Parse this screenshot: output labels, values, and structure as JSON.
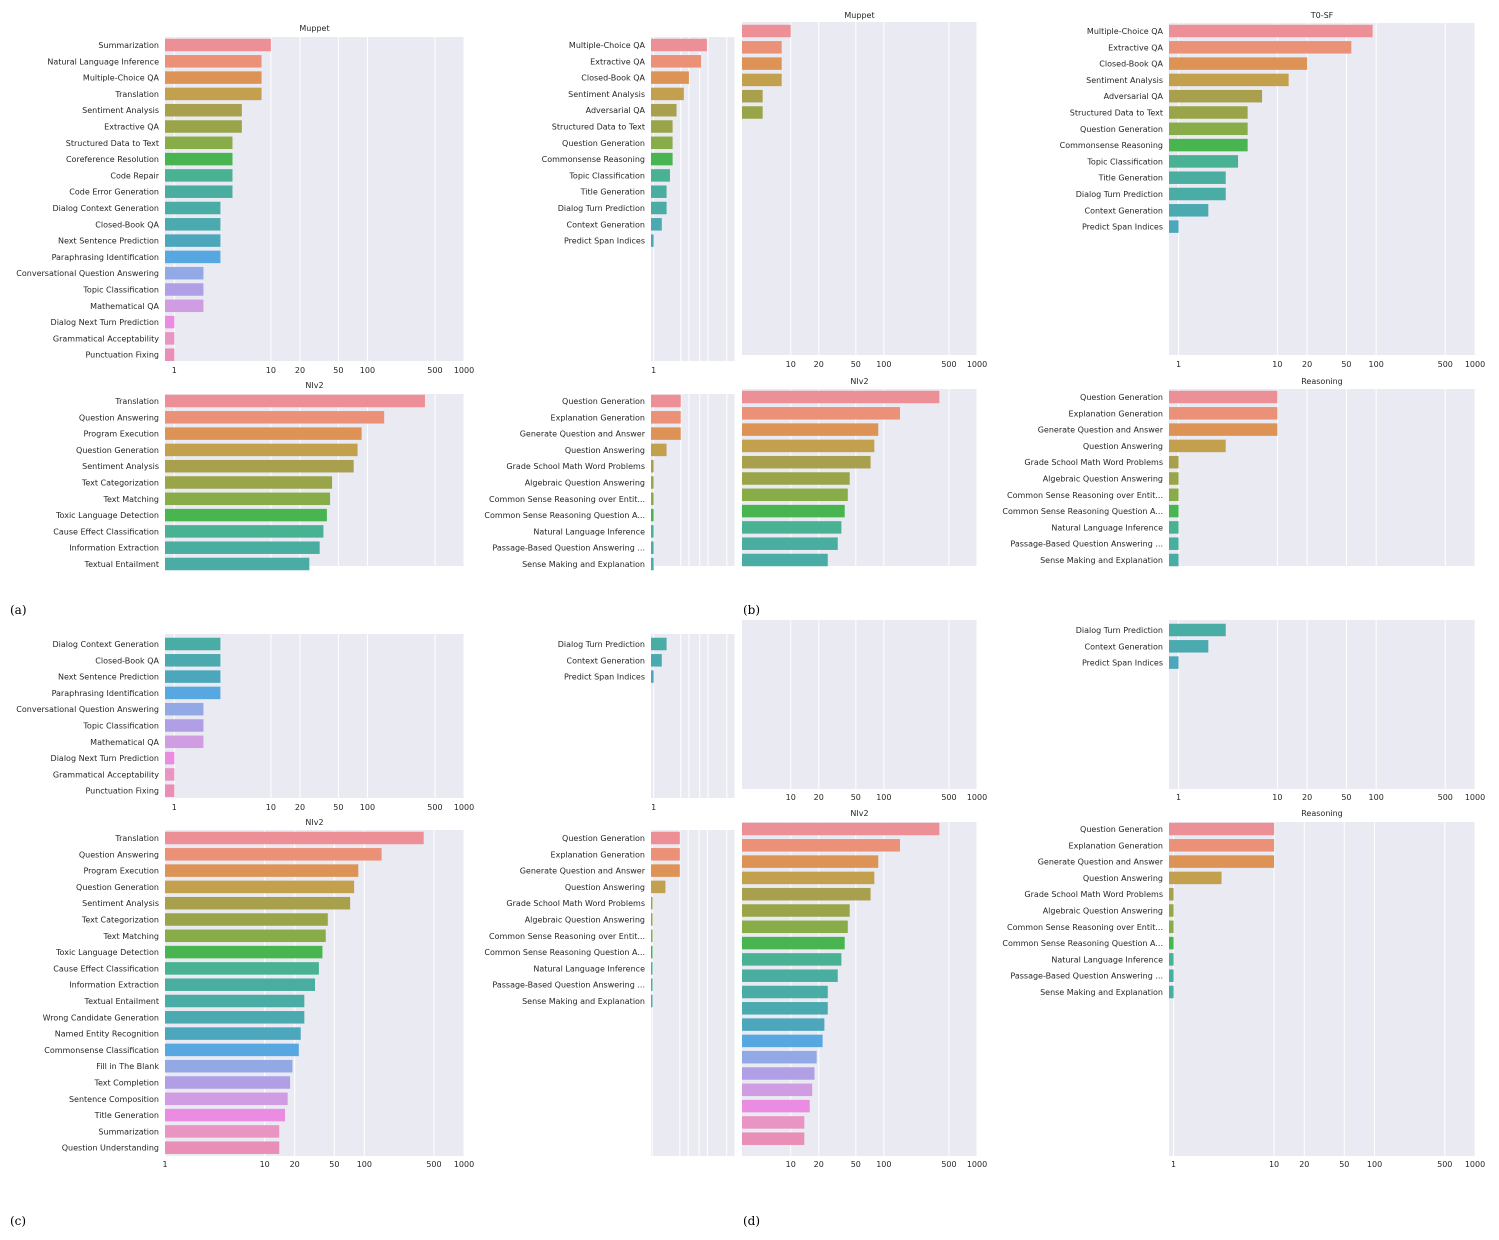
{
  "panel_labels": [
    "(a)",
    "(b)",
    "(c)",
    "(d)"
  ],
  "chart_data": [
    {
      "id": "a-top",
      "type": "bar",
      "orientation": "horizontal",
      "title": "Muppet",
      "xscale": "log",
      "xlim": [
        0.8,
        1000
      ],
      "xticks": [
        "1",
        "10",
        "20",
        "50",
        "100",
        "500",
        "1000"
      ],
      "categories": [
        "Summarization",
        "Natural Language Inference",
        "Multiple-Choice QA",
        "Translation",
        "Sentiment Analysis",
        "Extractive QA",
        "Structured Data to Text",
        "Coreference Resolution",
        "Code Repair",
        "Code Error Generation",
        "Dialog Context Generation",
        "Closed-Book QA",
        "Next Sentence Prediction",
        "Paraphrasing Identification",
        "Conversational Question Answering",
        "Topic Classification",
        "Mathematical QA",
        "Dialog Next Turn Prediction",
        "Grammatical Acceptability",
        "Punctuation Fixing"
      ],
      "values": [
        10,
        8,
        8,
        8,
        5,
        5,
        4,
        4,
        4,
        4,
        3,
        3,
        3,
        3,
        2,
        2,
        2,
        1,
        1,
        1
      ]
    },
    {
      "id": "a-bottom",
      "type": "bar",
      "orientation": "horizontal",
      "title": "NIv2",
      "xscale": "log",
      "xlim": [
        0.8,
        1000
      ],
      "categories": [
        "Translation",
        "Question Answering",
        "Program Execution",
        "Question Generation",
        "Sentiment Analysis",
        "Text Categorization",
        "Text Matching",
        "Toxic Language Detection",
        "Cause Effect Classification",
        "Information Extraction",
        "Textual Entailment"
      ],
      "values": [
        394,
        149,
        87,
        79,
        72,
        43,
        41,
        38,
        35,
        32,
        25
      ]
    },
    {
      "id": "b-left-top",
      "type": "bar",
      "orientation": "horizontal",
      "title": "",
      "xscale": "log",
      "xlim": [
        0.8,
        1000
      ],
      "xticks": [
        "1"
      ],
      "categories": [
        "Multiple-Choice QA",
        "Extractive QA",
        "Closed-Book QA",
        "Sentiment Analysis",
        "Adversarial QA",
        "Structured Data to Text",
        "Question Generation",
        "Commonsense Reasoning",
        "Topic Classification",
        "Title Generation",
        "Dialog Turn Prediction",
        "Context Generation",
        "Predict Span Indices"
      ],
      "values": [
        92,
        56,
        20,
        13,
        7,
        5,
        5,
        5,
        4,
        3,
        3,
        2,
        1
      ]
    },
    {
      "id": "b-mid-top",
      "type": "bar",
      "orientation": "horizontal",
      "title": "Muppet",
      "xscale": "log",
      "xlim": [
        3,
        1000
      ],
      "xticks": [
        "10",
        "20",
        "50",
        "100",
        "500",
        "1000"
      ],
      "values": [
        10,
        8,
        8,
        8,
        5,
        5
      ]
    },
    {
      "id": "b-right-top",
      "type": "bar",
      "orientation": "horizontal",
      "title": "T0-SF",
      "xscale": "log",
      "xlim": [
        0.8,
        1000
      ],
      "xticks": [
        "1",
        "10",
        "20",
        "50",
        "100",
        "500",
        "1000"
      ],
      "categories": [
        "Multiple-Choice QA",
        "Extractive QA",
        "Closed-Book QA",
        "Sentiment Analysis",
        "Adversarial QA",
        "Structured Data to Text",
        "Question Generation",
        "Commonsense Reasoning",
        "Topic Classification",
        "Title Generation",
        "Dialog Turn Prediction",
        "Context Generation",
        "Predict Span Indices"
      ],
      "values": [
        92,
        56,
        20,
        13,
        7,
        5,
        5,
        5,
        4,
        3,
        3,
        2,
        1
      ]
    },
    {
      "id": "b-left-bottom",
      "type": "bar",
      "orientation": "horizontal",
      "title": "",
      "xscale": "log",
      "xlim": [
        0.8,
        1000
      ],
      "categories": [
        "Question Generation",
        "Explanation Generation",
        "Generate Question and Answer",
        "Question Answering",
        "Grade School Math Word Problems",
        "Algebraic Question Answering",
        "Common Sense Reasoning over Entit...",
        "Common Sense Reasoning Question A...",
        "Natural Language Inference",
        "Passage-Based Question Answering ...",
        "Sense Making and Explanation"
      ],
      "values": [
        10,
        10,
        10,
        3,
        1,
        1,
        1,
        1,
        1,
        1,
        1
      ]
    },
    {
      "id": "b-mid-bottom",
      "type": "bar",
      "orientation": "horizontal",
      "title": "NIv2",
      "xscale": "log",
      "xlim": [
        3,
        1000
      ],
      "values": [
        394,
        149,
        87,
        79,
        72,
        43,
        41,
        38,
        35,
        32,
        25
      ]
    },
    {
      "id": "b-right-bottom",
      "type": "bar",
      "orientation": "horizontal",
      "title": "Reasoning",
      "xscale": "log",
      "xlim": [
        0.8,
        1000
      ],
      "categories": [
        "Question Generation",
        "Explanation Generation",
        "Generate Question and Answer",
        "Question Answering",
        "Grade School Math Word Problems",
        "Algebraic Question Answering",
        "Common Sense Reasoning over Entit...",
        "Common Sense Reasoning Question A...",
        "Natural Language Inference",
        "Passage-Based Question Answering ...",
        "Sense Making and Explanation"
      ],
      "values": [
        10,
        10,
        10,
        3,
        1,
        1,
        1,
        1,
        1,
        1,
        1
      ]
    },
    {
      "id": "c-top",
      "type": "bar",
      "orientation": "horizontal",
      "title": "",
      "xscale": "log",
      "xlim": [
        0.8,
        1000
      ],
      "xticks": [
        "1",
        "10",
        "20",
        "50",
        "100",
        "500",
        "1000"
      ],
      "categories": [
        "Dialog Context Generation",
        "Closed-Book QA",
        "Next Sentence Prediction",
        "Paraphrasing Identification",
        "Conversational Question Answering",
        "Topic Classification",
        "Mathematical QA",
        "Dialog Next Turn Prediction",
        "Grammatical Acceptability",
        "Punctuation Fixing"
      ],
      "values": [
        3,
        3,
        3,
        3,
        2,
        2,
        2,
        1,
        1,
        1
      ]
    },
    {
      "id": "c-bottom",
      "type": "bar",
      "orientation": "horizontal",
      "title": "NIv2",
      "xscale": "log",
      "xlim": [
        1,
        1000
      ],
      "xticks": [
        "1",
        "10",
        "20",
        "50",
        "100",
        "500",
        "1000"
      ],
      "categories": [
        "Translation",
        "Question Answering",
        "Program Execution",
        "Question Generation",
        "Sentiment Analysis",
        "Text Categorization",
        "Text Matching",
        "Toxic Language Detection",
        "Cause Effect Classification",
        "Information Extraction",
        "Textual Entailment",
        "Wrong Candidate Generation",
        "Named Entity Recognition",
        "Commonsense Classification",
        "Fill in The Blank",
        "Text Completion",
        "Sentence Composition",
        "Title Generation",
        "Summarization",
        "Question Understanding"
      ],
      "values": [
        394,
        149,
        87,
        79,
        72,
        43,
        41,
        38,
        35,
        32,
        25,
        25,
        23,
        22,
        19,
        18,
        17,
        16,
        14,
        14
      ]
    },
    {
      "id": "d-left-top",
      "type": "bar",
      "orientation": "horizontal",
      "title": "",
      "xscale": "log",
      "xlim": [
        0.8,
        1000
      ],
      "xticks": [
        "1"
      ],
      "categories": [
        "Dialog Turn Prediction",
        "Context Generation",
        "Predict Span Indices"
      ],
      "values": [
        3,
        2,
        1
      ]
    },
    {
      "id": "d-mid-top",
      "type": "bar",
      "orientation": "horizontal",
      "title": "",
      "xscale": "log",
      "xlim": [
        3,
        1000
      ],
      "xticks": [
        "10",
        "20",
        "50",
        "100",
        "500",
        "1000"
      ],
      "values": []
    },
    {
      "id": "d-right-top",
      "type": "bar",
      "orientation": "horizontal",
      "title": "",
      "xscale": "log",
      "xlim": [
        0.8,
        1000
      ],
      "xticks": [
        "1",
        "10",
        "20",
        "50",
        "100",
        "500",
        "1000"
      ],
      "categories": [
        "Dialog Turn Prediction",
        "Context Generation",
        "Predict Span Indices"
      ],
      "values": [
        3,
        2,
        1
      ]
    },
    {
      "id": "d-left-bottom",
      "type": "bar",
      "orientation": "horizontal",
      "title": "",
      "xscale": "log",
      "xlim": [
        0.9,
        1000
      ],
      "xticks": [
        "1"
      ],
      "categories": [
        "Question Generation",
        "Explanation Generation",
        "Generate Question and Answer",
        "Question Answering",
        "Grade School Math Word Problems",
        "Algebraic Question Answering",
        "Common Sense Reasoning over Entit...",
        "Common Sense Reasoning Question A...",
        "Natural Language Inference",
        "Passage-Based Question Answering ...",
        "Sense Making and Explanation"
      ],
      "values": [
        10,
        10,
        10,
        3,
        1,
        1,
        1,
        1,
        1,
        1,
        1
      ]
    },
    {
      "id": "d-mid-bottom",
      "type": "bar",
      "orientation": "horizontal",
      "title": "NIv2",
      "xscale": "log",
      "xlim": [
        3,
        1000
      ],
      "xticks": [
        "10",
        "20",
        "50",
        "100",
        "500",
        "1000"
      ],
      "values": [
        394,
        149,
        87,
        79,
        72,
        43,
        41,
        38,
        35,
        32,
        25,
        25,
        23,
        22,
        19,
        18,
        17,
        16,
        14,
        14
      ]
    },
    {
      "id": "d-right-bottom",
      "type": "bar",
      "orientation": "horizontal",
      "title": "Reasoning",
      "xscale": "log",
      "xlim": [
        0.9,
        1000
      ],
      "xticks": [
        "1",
        "10",
        "20",
        "50",
        "100",
        "500",
        "1000"
      ],
      "categories": [
        "Question Generation",
        "Explanation Generation",
        "Generate Question and Answer",
        "Question Answering",
        "Grade School Math Word Problems",
        "Algebraic Question Answering",
        "Common Sense Reasoning over Entit...",
        "Common Sense Reasoning Question A...",
        "Natural Language Inference",
        "Passage-Based Question Answering ...",
        "Sense Making and Explanation"
      ],
      "values": [
        10,
        10,
        10,
        3,
        1,
        1,
        1,
        1,
        1,
        1,
        1
      ]
    }
  ]
}
